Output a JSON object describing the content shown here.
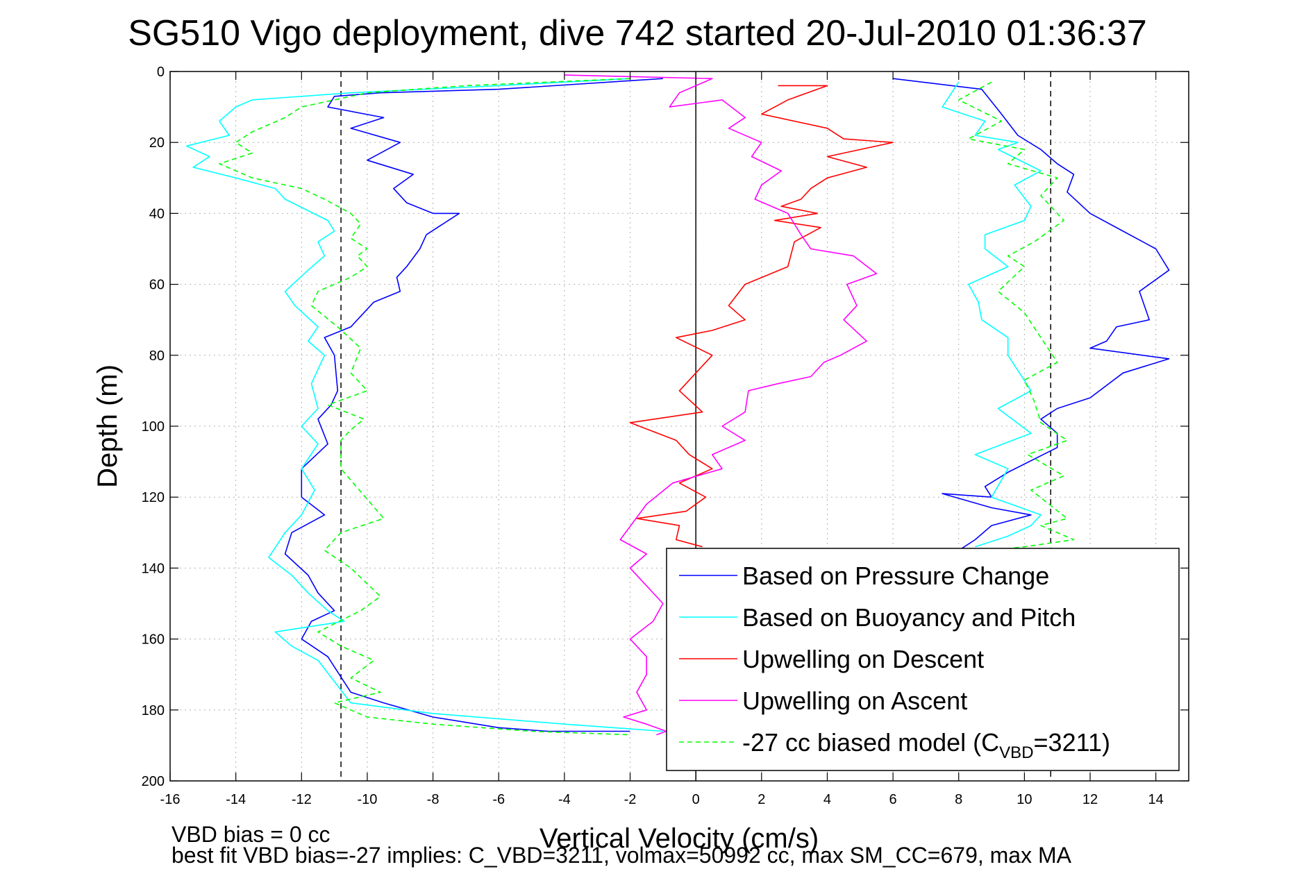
{
  "chart_data": {
    "type": "line",
    "title": "SG510 Vigo deployment, dive 742 started 20-Jul-2010 01:36:37",
    "xlabel": "Vertical Velocity (cm/s)",
    "ylabel": "Depth (m)",
    "xlim": [
      -16,
      15
    ],
    "ylim": [
      0,
      200
    ],
    "y_reversed": true,
    "grid": true,
    "legend_position": "bottom-right",
    "xticks": [
      "-16",
      "-14",
      "-12",
      "-10",
      "-8",
      "-6",
      "-4",
      "-2",
      "0",
      "2",
      "4",
      "6",
      "8",
      "10",
      "12",
      "14"
    ],
    "yticks": [
      "0",
      "20",
      "40",
      "60",
      "80",
      "100",
      "120",
      "140",
      "160",
      "180",
      "200"
    ],
    "reference_lines": [
      {
        "x": -10.8,
        "style": "dashed",
        "color": "#000000"
      },
      {
        "x": 0,
        "style": "solid",
        "color": "#000000"
      },
      {
        "x": 10.8,
        "style": "dashed",
        "color": "#000000"
      }
    ],
    "series": [
      {
        "name": "Based on Pressure Change",
        "color": "#0000ff",
        "dash": "solid",
        "x": [
          -1.0,
          -6.0,
          -9.6,
          -11.0,
          -11.2,
          -9.5,
          -10.5,
          -9.0,
          -10.0,
          -8.6,
          -9.2,
          -8.8,
          -8.0,
          -7.2,
          -8.2,
          -8.4,
          -8.8,
          -9.1,
          -9.0,
          -9.8,
          -10.5,
          -11.3,
          -11.0,
          -10.9,
          -11.1,
          -11.5,
          -11.2,
          -12.0,
          -12.0,
          -11.3,
          -12.3,
          -12.5,
          -11.8,
          -11.5,
          -11.0,
          -11.7,
          -12.0,
          -11.2,
          -10.5,
          -9.5,
          -8.0,
          -6.0,
          -4.5,
          -2.0
        ],
        "y": [
          2,
          5,
          6,
          7,
          10,
          13,
          16,
          20,
          25,
          29,
          33,
          37,
          40,
          40,
          46,
          50,
          55,
          58,
          62,
          65,
          72,
          75,
          80,
          90,
          94,
          98,
          105,
          112,
          120,
          125,
          130,
          136,
          142,
          147,
          152,
          155,
          160,
          165,
          175,
          178,
          182,
          185,
          186,
          186
        ]
      },
      {
        "name": "Based on Buoyancy and Pitch",
        "color": "#00ffff",
        "dash": "solid",
        "x": [
          -2.0,
          -6.0,
          -10.5,
          -13.5,
          -14.0,
          -14.5,
          -14.2,
          -15.5,
          -14.8,
          -15.3,
          -14.0,
          -12.8,
          -12.5,
          -11.2,
          -11.0,
          -11.5,
          -11.3,
          -11.8,
          -12.5,
          -12.2,
          -11.5,
          -11.8,
          -11.3,
          -11.7,
          -11.5,
          -12.0,
          -11.5,
          -12.0,
          -11.6,
          -12.0,
          -12.5,
          -13.0,
          -12.3,
          -11.8,
          -11.2,
          -10.7,
          -12.8,
          -12.3,
          -11.5,
          -11.0,
          -10.5,
          -8.0,
          -4.0,
          -1.0
        ],
        "y": [
          2,
          4,
          6,
          8,
          10,
          14,
          18,
          21,
          24,
          27,
          30,
          33,
          36,
          42,
          45,
          48,
          52,
          56,
          62,
          66,
          72,
          76,
          80,
          88,
          95,
          100,
          105,
          112,
          118,
          125,
          130,
          137,
          142,
          147,
          152,
          155,
          158,
          162,
          166,
          172,
          178,
          181,
          184,
          186
        ]
      },
      {
        "name": "Upwelling on Descent",
        "color": "#ff0000",
        "dash": "solid",
        "x": [
          2.5,
          4.0,
          2.8,
          2.0,
          4.0,
          4.5,
          6.0,
          4.0,
          5.2,
          4.0,
          3.5,
          3.2,
          2.6,
          3.7,
          2.4,
          3.8,
          3.0,
          2.8,
          1.5,
          1.0,
          1.5,
          0.5,
          -0.6,
          0.5,
          -0.5,
          0.2,
          -2.0,
          -0.6,
          -0.2,
          0.5,
          -0.5,
          0.3,
          -0.3,
          -1.8,
          -0.5,
          -0.6,
          0.2
        ],
        "y": [
          4,
          4,
          8,
          12,
          16,
          19,
          20,
          24,
          27,
          30,
          33,
          36,
          38,
          40,
          42,
          44,
          48,
          55,
          60,
          66,
          70,
          73,
          75,
          80,
          90,
          96,
          99,
          104,
          108,
          112,
          116,
          120,
          124,
          126,
          128,
          132,
          134
        ]
      },
      {
        "name": "Upwelling on Ascent",
        "color": "#ff00ff",
        "dash": "solid",
        "x": [
          -4.0,
          0.5,
          -0.5,
          -0.8,
          0.8,
          1.5,
          1.0,
          2.0,
          1.7,
          2.6,
          2.0,
          1.8,
          2.8,
          3.2,
          3.5,
          4.8,
          5.5,
          4.6,
          4.9,
          4.5,
          5.2,
          4.4,
          3.9,
          3.5,
          2.5,
          1.6,
          1.5,
          0.8,
          1.5,
          0.5,
          0.8,
          -0.7,
          -1.5,
          -2.3,
          -1.5,
          -2.0,
          -1.5,
          -1.0,
          -1.3,
          -2.0,
          -1.5,
          -1.5,
          -1.8,
          -1.5,
          -2.2,
          -1.5,
          -0.9,
          -1.2
        ],
        "y": [
          1,
          2,
          6,
          10,
          8,
          13,
          16,
          20,
          24,
          28,
          32,
          36,
          40,
          46,
          50,
          52,
          57,
          60,
          66,
          70,
          76,
          80,
          82,
          86,
          88,
          90,
          96,
          100,
          104,
          108,
          112,
          116,
          122,
          132,
          136,
          140,
          145,
          150,
          155,
          160,
          165,
          170,
          175,
          180,
          182,
          184,
          186,
          187
        ]
      },
      {
        "name": "-27 cc biased model (C_VBD=3211)",
        "color": "#00ff00",
        "dash": "dashed",
        "x": [
          -2.0,
          -7.0,
          -10.0,
          -11.0,
          -12.0,
          -12.5,
          -13.5,
          -14.0,
          -13.5,
          -14.5,
          -13.5,
          -12.0,
          -11.3,
          -10.5,
          -10.2,
          -10.5,
          -10.0,
          -10.3,
          -10.0,
          -10.5,
          -11.5,
          -11.7,
          -10.9,
          -10.2,
          -10.5,
          -10.0,
          -11.2,
          -10.1,
          -10.5,
          -10.8,
          -10.8,
          -9.5,
          -10.8,
          -11.3,
          -10.5,
          -9.6,
          -10.2,
          -11.5,
          -10.8,
          -9.8,
          -10.5,
          -9.6,
          -11.0,
          -10.5,
          -10.0,
          -8.0,
          -5.0,
          -2.0
        ],
        "y": [
          2,
          4,
          6,
          8,
          10,
          13,
          17,
          20,
          23,
          26,
          30,
          33,
          36,
          40,
          43,
          47,
          50,
          52,
          55,
          58,
          62,
          66,
          72,
          78,
          85,
          90,
          94,
          98,
          101,
          104,
          112,
          126,
          130,
          135,
          140,
          148,
          152,
          158,
          162,
          166,
          171,
          175,
          178,
          180,
          182,
          184,
          186,
          187
        ]
      },
      {
        "name": "",
        "color": "#0000ff",
        "dash": "solid",
        "x": [
          6.0,
          8.7,
          9.3,
          9.8,
          10.5,
          11.0,
          11.5,
          11.3,
          12.0,
          13.0,
          14.0,
          14.4,
          13.5,
          13.8,
          12.8,
          12.5,
          12.0,
          14.4,
          13.0,
          12.0,
          11.0,
          10.5,
          11.0,
          11.0,
          9.5,
          8.8,
          9.0,
          7.5,
          9.0,
          10.2,
          9.0,
          8.5,
          8.0
        ],
        "y": [
          2,
          5,
          12,
          18,
          22,
          26,
          29,
          34,
          40,
          45,
          50,
          56,
          62,
          70,
          72,
          76,
          78,
          81,
          85,
          92,
          95,
          98,
          102,
          106,
          113,
          117,
          120,
          119,
          123,
          125,
          128,
          132,
          135
        ]
      },
      {
        "name": "",
        "color": "#00ffff",
        "dash": "solid",
        "x": [
          8.0,
          7.5,
          8.8,
          8.5,
          9.8,
          9.2,
          10.5,
          9.7,
          10.2,
          10.0,
          8.8,
          8.8,
          9.5,
          8.3,
          8.6,
          8.7,
          9.5,
          9.5,
          10.2,
          9.2,
          10.2,
          8.5,
          9.5,
          9.0,
          10.5,
          10.2,
          9.5,
          8.5
        ],
        "y": [
          3,
          10,
          14,
          18,
          20,
          22,
          28,
          32,
          38,
          42,
          46,
          50,
          55,
          60,
          65,
          70,
          75,
          80,
          90,
          95,
          102,
          108,
          112,
          120,
          125,
          128,
          131,
          134
        ]
      },
      {
        "name": "",
        "color": "#00ff00",
        "dash": "dashed",
        "x": [
          9.0,
          8.0,
          9.3,
          8.3,
          10.0,
          9.5,
          11.0,
          10.5,
          11.2,
          10.3,
          9.5,
          10.0,
          9.2,
          10.0,
          10.5,
          11.0,
          10.0,
          10.3,
          10.5,
          11.3,
          10.1,
          11.2,
          10.2,
          11.3,
          10.5,
          11.5,
          10.0,
          9.0
        ],
        "y": [
          3,
          8,
          14,
          19,
          22,
          26,
          30,
          35,
          42,
          48,
          52,
          55,
          62,
          68,
          75,
          82,
          87,
          93,
          99,
          104,
          108,
          114,
          118,
          126,
          128,
          132,
          134,
          135
        ]
      }
    ],
    "legend": [
      {
        "label": "Based on Pressure Change",
        "color": "#0000ff",
        "dash": "solid"
      },
      {
        "label": "Based on Buoyancy and Pitch",
        "color": "#00ffff",
        "dash": "solid"
      },
      {
        "label": "Upwelling on Descent",
        "color": "#ff0000",
        "dash": "solid"
      },
      {
        "label": "Upwelling on Ascent",
        "color": "#ff00ff",
        "dash": "solid"
      },
      {
        "label": "-27 cc biased model (C",
        "sub": "VBD",
        "suffix": "=3211)",
        "color": "#00ff00",
        "dash": "dashed"
      }
    ],
    "footnotes": [
      "VBD bias = 0 cc",
      "best fit VBD bias=-27 implies: C_VBD=3211, volmax=50992 cc, max SM_CC=679, max MA"
    ]
  }
}
